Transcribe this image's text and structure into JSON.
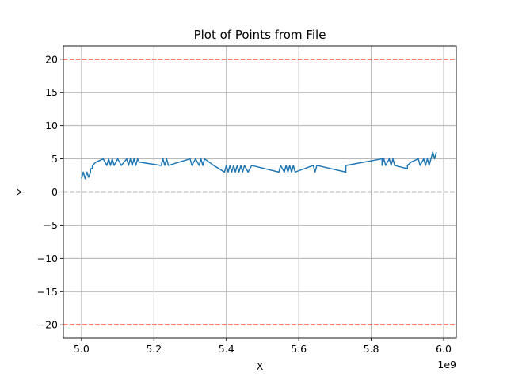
{
  "chart_data": {
    "type": "line",
    "title": "Plot of Points from File",
    "xlabel": "X",
    "ylabel": "Y",
    "x_offset_label": "1e9",
    "xlim": [
      4.95,
      6.035
    ],
    "ylim": [
      -22,
      22
    ],
    "x_ticks": [
      {
        "value": 5.0,
        "label": "5.0"
      },
      {
        "value": 5.2,
        "label": "5.2"
      },
      {
        "value": 5.4,
        "label": "5.4"
      },
      {
        "value": 5.6,
        "label": "5.6"
      },
      {
        "value": 5.8,
        "label": "5.8"
      },
      {
        "value": 6.0,
        "label": "6.0"
      }
    ],
    "y_ticks": [
      {
        "value": -20,
        "label": "−20"
      },
      {
        "value": -15,
        "label": "−15"
      },
      {
        "value": -10,
        "label": "−10"
      },
      {
        "value": -5,
        "label": "−5"
      },
      {
        "value": 0,
        "label": "0"
      },
      {
        "value": 5,
        "label": "5"
      },
      {
        "value": 10,
        "label": "10"
      },
      {
        "value": 15,
        "label": "15"
      },
      {
        "value": 20,
        "label": "20"
      }
    ],
    "grid": true,
    "colors": {
      "series": "#1f77b4",
      "threshold": "#ff0000",
      "zero_line": "#808080",
      "grid": "#b0b0b0"
    },
    "reference_lines": [
      {
        "y": 20,
        "style": "dashed",
        "color": "#ff0000"
      },
      {
        "y": -20,
        "style": "dashed",
        "color": "#ff0000"
      },
      {
        "y": 0,
        "style": "dashed",
        "color": "#808080"
      }
    ],
    "series": [
      {
        "x": [
          5.0,
          5.005,
          5.01,
          5.015,
          5.02,
          5.025,
          5.025,
          5.03,
          5.03,
          5.04,
          5.06,
          5.07,
          5.075,
          5.08,
          5.085,
          5.09,
          5.1,
          5.11,
          5.125,
          5.13,
          5.135,
          5.14,
          5.145,
          5.15,
          5.155,
          5.16,
          5.22,
          5.225,
          5.23,
          5.235,
          5.24,
          5.3,
          5.305,
          5.315,
          5.325,
          5.33,
          5.335,
          5.34,
          5.365,
          5.395,
          5.4,
          5.405,
          5.41,
          5.415,
          5.42,
          5.425,
          5.43,
          5.435,
          5.44,
          5.445,
          5.45,
          5.46,
          5.47,
          5.545,
          5.55,
          5.56,
          5.565,
          5.57,
          5.575,
          5.58,
          5.585,
          5.59,
          5.64,
          5.645,
          5.65,
          5.73,
          5.73,
          5.83,
          5.83,
          5.835,
          5.84,
          5.85,
          5.855,
          5.86,
          5.865,
          5.9,
          5.9,
          5.91,
          5.93,
          5.935,
          5.945,
          5.95,
          5.955,
          5.96,
          5.965,
          5.97,
          5.975,
          5.98
        ],
        "y": [
          2.0,
          3.0,
          2.0,
          3.0,
          2.2,
          3.0,
          3.5,
          3.5,
          4.0,
          4.5,
          5.0,
          4.0,
          5.0,
          4.0,
          5.0,
          4.0,
          5.0,
          4.0,
          5.0,
          4.0,
          5.0,
          4.0,
          5.0,
          4.0,
          5.0,
          4.5,
          4.0,
          5.0,
          4.0,
          5.0,
          4.0,
          5.0,
          4.0,
          5.0,
          4.0,
          5.0,
          4.0,
          5.0,
          4.0,
          3.0,
          4.0,
          3.0,
          4.0,
          3.0,
          4.0,
          3.0,
          4.0,
          3.0,
          4.0,
          3.0,
          4.0,
          3.0,
          4.0,
          3.0,
          4.0,
          3.0,
          4.0,
          3.0,
          4.0,
          3.0,
          4.0,
          3.0,
          4.0,
          3.0,
          4.0,
          3.0,
          4.0,
          5.0,
          4.0,
          5.0,
          4.0,
          5.0,
          4.0,
          5.0,
          4.0,
          3.5,
          4.0,
          4.5,
          5.0,
          4.0,
          5.0,
          4.0,
          5.0,
          4.0,
          5.0,
          6.0,
          5.0,
          6.0
        ]
      }
    ]
  }
}
